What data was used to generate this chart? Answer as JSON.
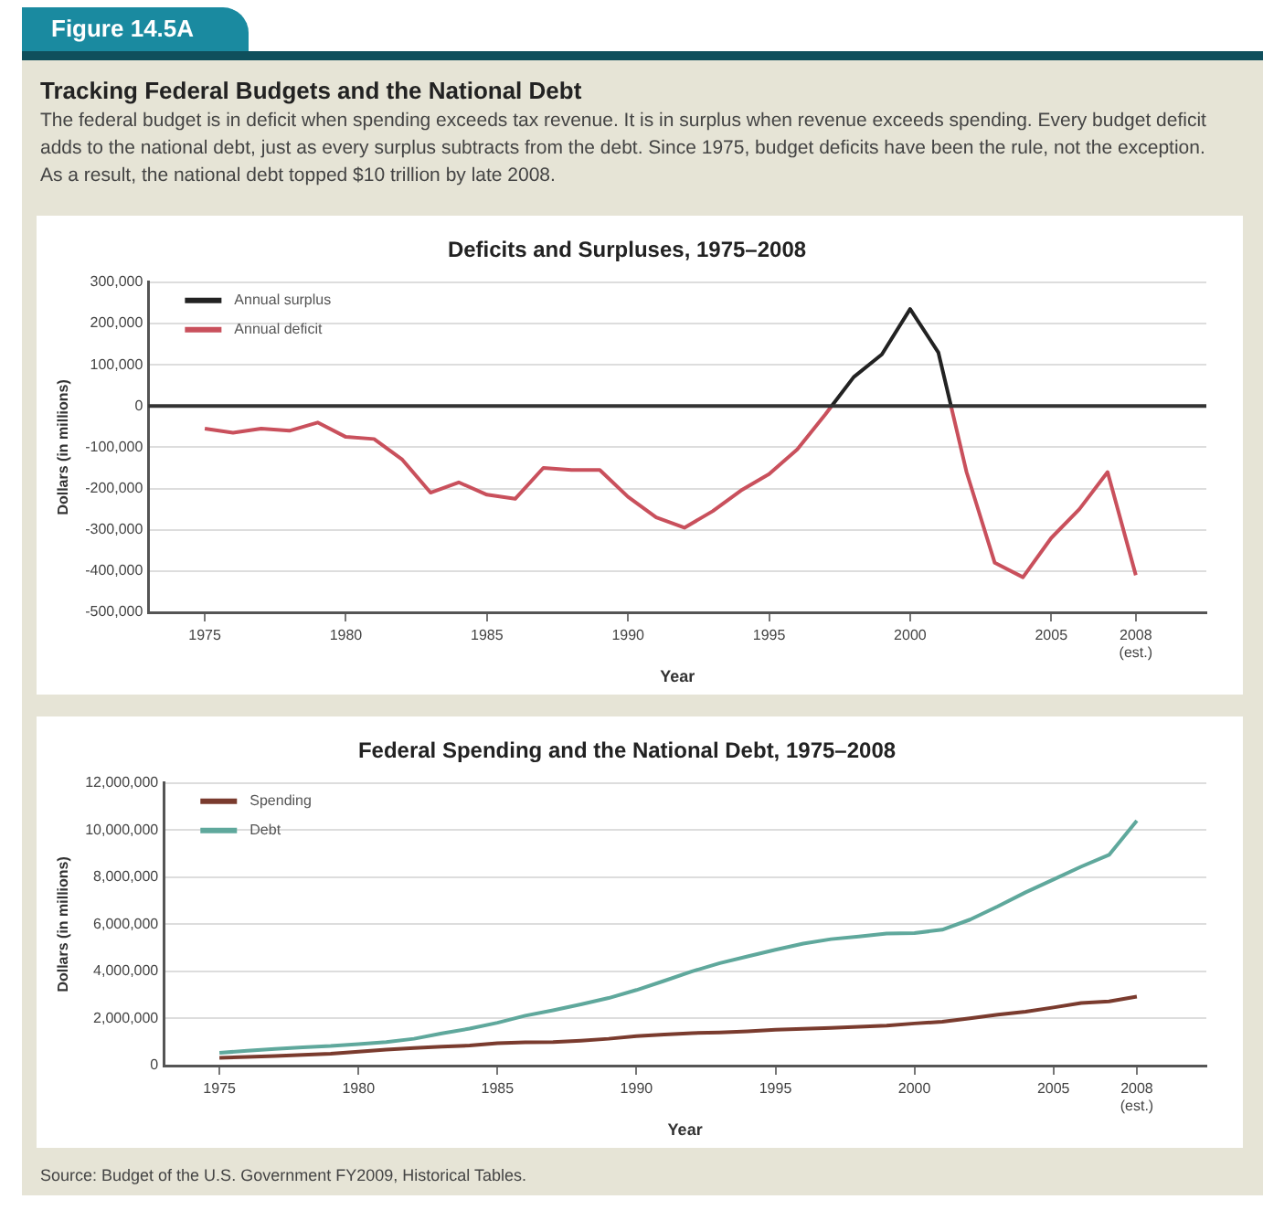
{
  "chart_data": [
    {
      "type": "line",
      "title": "Deficits and Surpluses, 1975–2008",
      "xlabel": "Year",
      "ylabel": "Dollars (in millions)",
      "annotations": [
        "Figure 14.5A",
        "Tracking Federal Budgets and the National Debt",
        "The federal budget is in deficit when spending exceeds tax revenue. It is in surplus when revenue exceeds spending. Every budget deficit adds to the national debt, just as every surplus subtracts from the debt. Since 1975, budget deficits have been the rule, not the exception. As a result, the national debt topped $10 trillion by late 2008."
      ],
      "series": [
        {
          "name": "Annual surplus",
          "color": "#222222",
          "x": [
            1997.22,
            1998,
            1999,
            2000,
            2001,
            2001.45
          ],
          "values": [
            0,
            70000,
            125000,
            235000,
            130000,
            0
          ]
        },
        {
          "name": "Annual deficit",
          "color": "#c9505c",
          "x": [
            1975,
            1976,
            1977,
            1978,
            1979,
            1980,
            1981,
            1982,
            1983,
            1984,
            1985,
            1986,
            1987,
            1988,
            1989,
            1990,
            1991,
            1992,
            1993,
            1994,
            1995,
            1996,
            1997,
            1997.22,
            1999,
            2001.45,
            2002,
            2003,
            2004,
            2005,
            2006,
            2007,
            2008
          ],
          "values": [
            -55000,
            -65000,
            -55000,
            -60000,
            -40000,
            -75000,
            -80000,
            -130000,
            -210000,
            -185000,
            -215000,
            -225000,
            -150000,
            -155000,
            -155000,
            -220000,
            -270000,
            -295000,
            -255000,
            -205000,
            -165000,
            -105000,
            -20000,
            0,
            null,
            0,
            -160000,
            -380000,
            -415000,
            -320000,
            -250000,
            -160000,
            -410000
          ]
        }
      ],
      "xlim": [
        1973,
        2010.5
      ],
      "xticks": [
        1975,
        1980,
        1985,
        1990,
        1995,
        2000,
        2005,
        {
          "value": 2008,
          "label": "2008 (est.)"
        }
      ],
      "ylim": [
        -500000,
        300000
      ],
      "yticks": [
        {
          "value": -500000,
          "label": "-500,000"
        },
        {
          "value": -400000,
          "label": "-400,000"
        },
        {
          "value": -300000,
          "label": "-300,000"
        },
        {
          "value": -200000,
          "label": "-200,000"
        },
        {
          "value": -100000,
          "label": "-100,000"
        },
        0,
        {
          "value": 100000,
          "label": "100,000"
        },
        {
          "value": 200000,
          "label": "200,000"
        },
        {
          "value": 300000,
          "label": "300,000"
        }
      ],
      "ref_lines": [
        {
          "axis": "y",
          "value": 0,
          "color": "#333333"
        }
      ],
      "grid": "y",
      "legend": "top left",
      "marker": "none",
      "line_style": "solid"
    },
    {
      "type": "line",
      "title": "Federal Spending and the National Debt, 1975–2008",
      "xlabel": "Year",
      "ylabel": "Dollars (in millions)",
      "annotations": [
        "Source: Budget of the U.S. Government FY2009, Historical Tables."
      ],
      "x": [
        1975,
        1976,
        1977,
        1978,
        1979,
        1980,
        1981,
        1982,
        1983,
        1984,
        1985,
        1986,
        1987,
        1988,
        1989,
        1990,
        1991,
        1992,
        1993,
        1994,
        1995,
        1996,
        1997,
        1998,
        1999,
        2000,
        2001,
        2002,
        2003,
        2004,
        2005,
        2006,
        2007,
        2008
      ],
      "series": [
        {
          "name": "Spending",
          "color": "#7a3b2e",
          "values": [
            330000,
            370000,
            410000,
            460000,
            500000,
            590000,
            680000,
            750000,
            810000,
            850000,
            950000,
            990000,
            1000000,
            1060000,
            1140000,
            1250000,
            1320000,
            1380000,
            1410000,
            1460000,
            1520000,
            1560000,
            1600000,
            1650000,
            1700000,
            1790000,
            1860000,
            2010000,
            2160000,
            2290000,
            2470000,
            2660000,
            2730000,
            2930000
          ]
        },
        {
          "name": "Debt",
          "color": "#5fa89c",
          "values": [
            540000,
            630000,
            710000,
            780000,
            830000,
            910000,
            1000000,
            1140000,
            1370000,
            1570000,
            1820000,
            2120000,
            2350000,
            2600000,
            2870000,
            3210000,
            3600000,
            4000000,
            4350000,
            4640000,
            4920000,
            5180000,
            5370000,
            5480000,
            5610000,
            5630000,
            5770000,
            6200000,
            6760000,
            7360000,
            7900000,
            8450000,
            8950000,
            10400000
          ]
        }
      ],
      "xlim": [
        1973,
        2010.5
      ],
      "xticks": [
        1975,
        1980,
        1985,
        1990,
        1995,
        2000,
        2005,
        {
          "value": 2008,
          "label": "2008 (est.)"
        }
      ],
      "ylim": [
        0,
        12000000
      ],
      "yticks": [
        0,
        {
          "value": 2000000,
          "label": "2,000,000"
        },
        {
          "value": 4000000,
          "label": "4,000,000"
        },
        {
          "value": 6000000,
          "label": "6,000,000"
        },
        {
          "value": 8000000,
          "label": "8,000,000"
        },
        {
          "value": 10000000,
          "label": "10,000,000"
        },
        {
          "value": 12000000,
          "label": "12,000,000"
        }
      ],
      "grid": "y",
      "legend": "top left",
      "marker": "none",
      "line_style": "solid"
    }
  ]
}
